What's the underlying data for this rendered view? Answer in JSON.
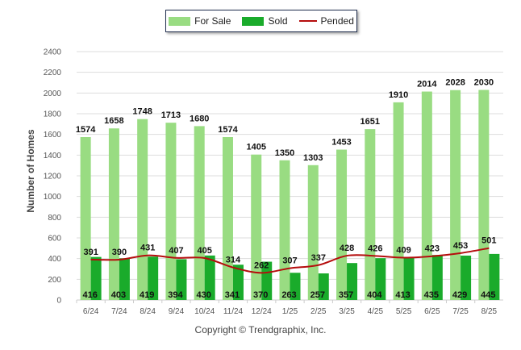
{
  "legend": {
    "for_sale": "For Sale",
    "sold": "Sold",
    "pended": "Pended"
  },
  "copyright": "Copyright © Trendgraphix, Inc.",
  "colors": {
    "for_sale": "#99dc82",
    "sold": "#1aab2b",
    "pended": "#b50d0d",
    "grid": "#dddddd"
  },
  "chart_data": {
    "type": "bar",
    "title": "",
    "xlabel": "",
    "ylabel": "Number of Homes",
    "ylim": [
      0,
      2400
    ],
    "yticks": [
      0,
      200,
      400,
      600,
      800,
      1000,
      1200,
      1400,
      1600,
      1800,
      2000,
      2200,
      2400
    ],
    "grid": true,
    "legend_position": "top-center",
    "categories": [
      "6/24",
      "7/24",
      "8/24",
      "9/24",
      "10/24",
      "11/24",
      "12/24",
      "1/25",
      "2/25",
      "3/25",
      "4/25",
      "5/25",
      "6/25",
      "7/25",
      "8/25"
    ],
    "series": [
      {
        "name": "For Sale",
        "type": "bar",
        "values": [
          1574,
          1658,
          1748,
          1713,
          1680,
          1574,
          1405,
          1350,
          1303,
          1453,
          1651,
          1910,
          2014,
          2028,
          2030
        ]
      },
      {
        "name": "Sold",
        "type": "bar",
        "values": [
          416,
          403,
          419,
          394,
          430,
          341,
          370,
          263,
          257,
          357,
          404,
          413,
          435,
          429,
          445
        ]
      },
      {
        "name": "Pended",
        "type": "line",
        "values": [
          391,
          390,
          431,
          407,
          405,
          314,
          262,
          307,
          337,
          428,
          426,
          409,
          423,
          453,
          501
        ]
      }
    ]
  }
}
